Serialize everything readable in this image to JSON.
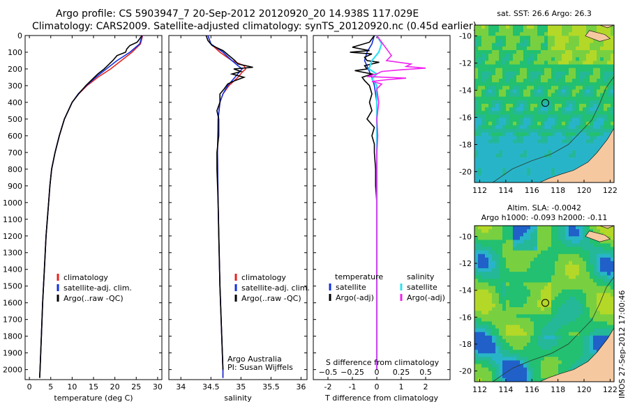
{
  "header": {
    "line1": "Argo profile: CS 5903947_7 20-Sep-2012 20120920_20 14.938S 117.029E",
    "line2": "Climatology: CARS2009. Satellite-adjusted climatology: synTS_20120920.nc (0.45d earlier)"
  },
  "side_stamp": "IMOS 27-Sep-2012 17:00:46",
  "colors": {
    "clim": "#e82020",
    "sat": "#1030e0",
    "argo": "#000000",
    "sal_sat": "#30e0f0",
    "sal_argo": "#f020f0",
    "land": "#f5c8a0",
    "ocean_low": "#28b4c8",
    "ocean_mid": "#22c070",
    "ocean_high": "#b4d828"
  },
  "chart_data": [
    {
      "type": "line",
      "id": "temperature",
      "xlabel": "temperature (deg C)",
      "xlim": [
        -1,
        31
      ],
      "ylim": [
        0,
        2060
      ],
      "x_ticks": [
        0,
        5,
        10,
        15,
        20,
        25,
        30
      ],
      "y_ticks": [
        0,
        100,
        200,
        300,
        400,
        500,
        600,
        700,
        800,
        900,
        1000,
        1100,
        1200,
        1300,
        1400,
        1500,
        1600,
        1700,
        1800,
        1900,
        2000
      ],
      "legend": [
        "climatology",
        "satellite-adj. clim.",
        "Argo(..raw -QC)"
      ],
      "series": [
        {
          "name": "climatology",
          "depth": [
            0,
            50,
            100,
            150,
            200,
            250,
            300,
            350,
            400,
            500,
            600,
            700,
            800,
            900,
            1000,
            1200,
            1400,
            1600,
            1800,
            2000,
            2050
          ],
          "values": [
            26.5,
            26,
            24,
            21.5,
            19,
            16,
            13.5,
            11.5,
            10,
            8.2,
            7,
            6,
            5.2,
            4.8,
            4.5,
            3.9,
            3.5,
            3.1,
            2.8,
            2.5,
            2.4
          ]
        },
        {
          "name": "satellite-adj. clim.",
          "depth": [
            0,
            50,
            100,
            150,
            200,
            250,
            300,
            350,
            400,
            500,
            600,
            700,
            800,
            900,
            1000,
            1200,
            1400,
            1600,
            1800,
            2000,
            2050
          ],
          "values": [
            26.4,
            25.8,
            23.5,
            20.5,
            18,
            15.5,
            13.3,
            11.4,
            10,
            8.2,
            7,
            6,
            5.2,
            4.8,
            4.5,
            3.9,
            3.5,
            3.1,
            2.8,
            2.5,
            2.4
          ]
        },
        {
          "name": "Argo(..raw -QC)",
          "depth": [
            0,
            20,
            40,
            60,
            80,
            100,
            120,
            150,
            180,
            200,
            230,
            260,
            300,
            350,
            400,
            500,
            600,
            700,
            800,
            900,
            1000,
            1200,
            1400,
            1600,
            1800,
            2000,
            2050
          ],
          "values": [
            26.3,
            25.8,
            25.2,
            23.5,
            22.8,
            22.5,
            20.5,
            19.5,
            18.3,
            17.5,
            16,
            14.8,
            13.2,
            11.5,
            10,
            8.2,
            7,
            6,
            5.2,
            4.8,
            4.5,
            3.9,
            3.5,
            3.1,
            2.8,
            2.5,
            2.4
          ]
        }
      ]
    },
    {
      "type": "line",
      "id": "salinity",
      "xlabel": "salinity",
      "xlim": [
        33.8,
        36.1
      ],
      "ylim": [
        0,
        2060
      ],
      "x_ticks": [
        34,
        34.5,
        35,
        35.5,
        36
      ],
      "x_tick_labels": [
        "34",
        "34.5",
        "35",
        "35.5",
        "36"
      ],
      "legend": [
        "climatology",
        "satellite-adj. clim.",
        "Argo(..raw -QC)"
      ],
      "annotation": [
        "Argo Australia",
        "PI: Susan Wijffels"
      ],
      "series": [
        {
          "name": "climatology",
          "depth": [
            0,
            50,
            100,
            150,
            180,
            200,
            220,
            250,
            300,
            350,
            400,
            500,
            700,
            1000,
            1500,
            1800,
            2000,
            2050
          ],
          "values": [
            34.45,
            34.5,
            34.65,
            34.85,
            35.05,
            35.08,
            35.02,
            34.95,
            34.8,
            34.7,
            34.65,
            34.62,
            34.61,
            34.62,
            34.65,
            34.68,
            34.7,
            34.7
          ]
        },
        {
          "name": "satellite-adj. clim.",
          "depth": [
            0,
            50,
            100,
            150,
            180,
            200,
            220,
            250,
            300,
            350,
            400,
            500,
            700,
            1000,
            1500,
            1800,
            2000,
            2050
          ],
          "values": [
            34.45,
            34.5,
            34.7,
            34.85,
            34.95,
            35.02,
            34.97,
            34.9,
            34.78,
            34.7,
            34.65,
            34.62,
            34.61,
            34.62,
            34.65,
            34.68,
            34.7,
            34.7
          ]
        },
        {
          "name": "Argo(..raw -QC)",
          "depth": [
            0,
            30,
            60,
            90,
            120,
            150,
            170,
            190,
            200,
            215,
            230,
            250,
            270,
            290,
            320,
            350,
            400,
            450,
            500,
            600,
            700,
            800,
            1000,
            1200,
            1500,
            1800,
            2000
          ],
          "values": [
            34.42,
            34.45,
            34.52,
            34.7,
            34.8,
            34.9,
            34.95,
            35.2,
            34.88,
            35.0,
            34.85,
            35.05,
            34.9,
            34.78,
            34.72,
            34.65,
            34.65,
            34.6,
            34.63,
            34.63,
            34.6,
            34.6,
            34.62,
            34.63,
            34.65,
            34.68,
            34.7
          ]
        }
      ]
    },
    {
      "type": "line",
      "id": "differences",
      "xlabel": "T difference from climatology",
      "x2label": "S difference from climatology",
      "xlim": [
        -2.6,
        3.0
      ],
      "ylim": [
        0,
        2060
      ],
      "x_ticks": [
        -2,
        -1,
        0,
        1,
        2
      ],
      "s_ticks": [
        -0.5,
        -0.25,
        0,
        0.25,
        0.5
      ],
      "s_tick_labels": [
        "−0.5",
        "−0.25",
        "0",
        "0.25",
        "0.5"
      ],
      "legend_temperature": [
        "temperature",
        "satellite",
        "Argo(-adj)"
      ],
      "legend_salinity": [
        "salinity",
        "satellite",
        "Argo(-adj)"
      ],
      "series": [
        {
          "name": "satellite",
          "kind": "T",
          "depth": [
            0,
            50,
            100,
            150,
            200,
            250,
            300,
            400,
            600,
            1000,
            2000
          ],
          "values": [
            -0.1,
            -0.2,
            -0.4,
            -0.5,
            -0.35,
            -0.2,
            -0.1,
            0,
            0,
            0,
            0
          ]
        },
        {
          "name": "Argo(-adj)",
          "kind": "T",
          "depth": [
            0,
            40,
            70,
            90,
            100,
            110,
            130,
            150,
            160,
            180,
            200,
            210,
            230,
            250,
            270,
            300,
            350,
            400,
            450,
            500,
            550,
            600,
            650,
            700,
            800,
            900,
            1000,
            1200,
            1500,
            1800,
            2000
          ],
          "values": [
            -0.1,
            -0.3,
            -1.0,
            -0.3,
            -1.1,
            -0.2,
            -0.5,
            -0.4,
            0.1,
            -0.5,
            -0.4,
            -0.9,
            -0.2,
            -0.6,
            -0.5,
            -0.3,
            -0.2,
            -0.3,
            -0.2,
            -0.4,
            -0.1,
            -0.2,
            -0.1,
            -0.1,
            -0.05,
            -0.05,
            0,
            0,
            0,
            0,
            0
          ]
        },
        {
          "name": "satellite",
          "kind": "S",
          "depth": [
            0,
            50,
            100,
            150,
            200,
            230,
            260,
            300,
            400,
            600,
            1000,
            2000
          ],
          "values": [
            0,
            0.05,
            0.02,
            -0.05,
            -0.08,
            0.0,
            -0.05,
            0.0,
            0,
            0,
            0,
            0
          ]
        },
        {
          "name": "Argo(-adj)",
          "kind": "S",
          "depth": [
            0,
            40,
            80,
            120,
            150,
            170,
            185,
            195,
            205,
            215,
            230,
            245,
            255,
            265,
            275,
            290,
            320,
            400,
            500,
            600,
            700,
            800,
            1000,
            2000
          ],
          "values": [
            0.0,
            0.05,
            0.1,
            0.15,
            0.1,
            0.35,
            0.3,
            0.5,
            0.25,
            0.05,
            0.0,
            -0.1,
            0.3,
            0.1,
            -0.05,
            0.05,
            0.0,
            0.02,
            0.0,
            0.01,
            0.0,
            0.0,
            0.0,
            0.0
          ]
        }
      ]
    },
    {
      "type": "heatmap",
      "id": "sst_map",
      "title": "sat. SST: 26.6 Argo: 26.3",
      "xlim": [
        111.6,
        122.3
      ],
      "ylim": [
        -20.8,
        -9.2
      ],
      "x_ticks": [
        112,
        114,
        116,
        118,
        120,
        122
      ],
      "y_ticks": [
        -10,
        -12,
        -14,
        -16,
        -18,
        -20
      ],
      "profile_location": [
        117.029,
        -14.938
      ]
    },
    {
      "type": "heatmap",
      "id": "sla_map",
      "title": "Altim. SLA: -0.0042",
      "subtitle": "Argo h1000: -0.093 h2000: -0.11",
      "xlim": [
        111.6,
        122.3
      ],
      "ylim": [
        -20.8,
        -9.2
      ],
      "x_ticks": [
        112,
        114,
        116,
        118,
        120,
        122
      ],
      "y_ticks": [
        -10,
        -12,
        -14,
        -16,
        -18,
        -20
      ],
      "profile_location": [
        117.029,
        -14.938
      ]
    }
  ]
}
